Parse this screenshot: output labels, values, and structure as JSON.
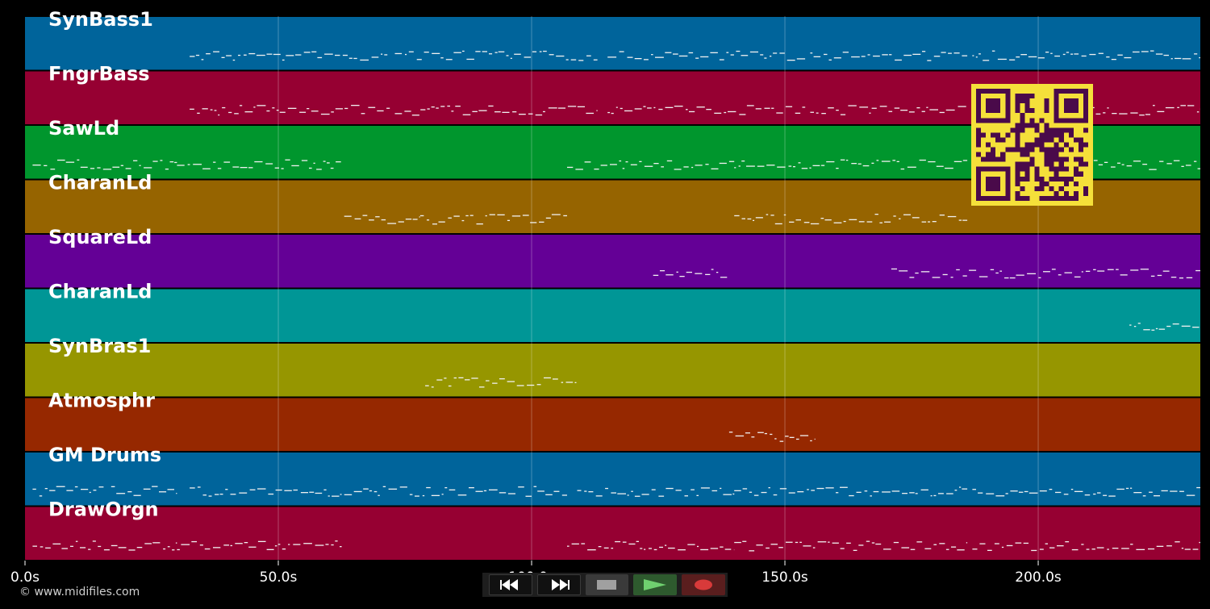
{
  "chart_data": {
    "type": "piano-roll",
    "xlim": [
      0,
      232
    ],
    "x_ticks": [
      {
        "value": 0,
        "label": "0.0s"
      },
      {
        "value": 50,
        "label": "50.0s"
      },
      {
        "value": 100,
        "label": "100.0s"
      },
      {
        "value": 150,
        "label": "150.0s"
      },
      {
        "value": 200,
        "label": "200.0s"
      }
    ],
    "grid": true,
    "tracks": [
      {
        "name": "SynBass1",
        "color": "#00649b",
        "segments": [
          [
            32.5,
            72
          ],
          [
            73,
            113
          ],
          [
            115,
            154
          ],
          [
            155,
            186
          ],
          [
            187,
            232
          ]
        ]
      },
      {
        "name": "FngrBass",
        "color": "#960032",
        "segments": [
          [
            32.5,
            72
          ],
          [
            73,
            113
          ],
          [
            115,
            154
          ],
          [
            155,
            186
          ],
          [
            187,
            232
          ]
        ]
      },
      {
        "name": "SawLd",
        "color": "#00962d",
        "segments": [
          [
            1.5,
            30
          ],
          [
            30,
            62.5
          ],
          [
            107,
            140
          ],
          [
            140,
            186
          ],
          [
            187,
            232
          ]
        ]
      },
      {
        "name": "CharanLd",
        "color": "#966400",
        "segments": [
          [
            63,
            78
          ],
          [
            78,
            107
          ],
          [
            140,
            186
          ]
        ]
      },
      {
        "name": "SquareLd",
        "color": "#640096",
        "segments": [
          [
            124,
            139
          ],
          [
            171,
            232
          ]
        ]
      },
      {
        "name": "CharanLd",
        "color": "#009696",
        "segments": [
          [
            218,
            232
          ]
        ]
      },
      {
        "name": "SynBras1",
        "color": "#969600",
        "segments": [
          [
            79,
            109
          ]
        ]
      },
      {
        "name": "Atmosphr",
        "color": "#962800",
        "segments": [
          [
            139,
            156
          ]
        ]
      },
      {
        "name": "GM Drums",
        "color": "#00649b",
        "segments": [
          [
            1.5,
            15.5
          ],
          [
            17,
            30
          ],
          [
            32.5,
            62.5
          ],
          [
            63,
            107
          ],
          [
            109,
            140
          ],
          [
            140,
            186
          ],
          [
            187,
            232
          ]
        ]
      },
      {
        "name": "DrawOrgn",
        "color": "#960032",
        "segments": [
          [
            1.5,
            30
          ],
          [
            30,
            62.5
          ],
          [
            107,
            140
          ],
          [
            140,
            186
          ],
          [
            187,
            232
          ]
        ]
      }
    ]
  },
  "copyright": "© www.midifiles.com",
  "transport": {
    "rewind": "rewind-icon",
    "fast_forward": "fast-forward-icon",
    "stop": "stop-icon",
    "play": "play-icon",
    "record": "record-icon"
  }
}
